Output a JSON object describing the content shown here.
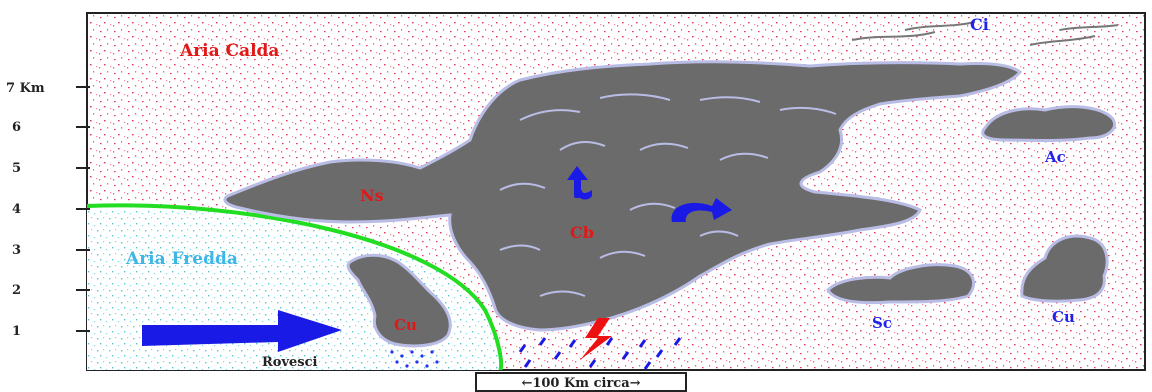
{
  "diagram": {
    "air_masses": {
      "warm": "Aria Calda",
      "cold": "Aria Fredda"
    },
    "clouds": {
      "cirrus": "Ci",
      "altocumulus": "Ac",
      "nimbostratus": "Ns",
      "cumulonimbus": "Cb",
      "cumulus_left": "Cu",
      "stratocumulus": "Sc",
      "cumulus_right": "Cu"
    },
    "showers": "Rovesci",
    "scale": "←100 Km circa→",
    "altitude_axis": {
      "ticks": [
        "7 Km",
        "6",
        "5",
        "4",
        "3",
        "2",
        "1"
      ]
    },
    "colors": {
      "cloud": "#6b6b6b",
      "cloud_edge": "#b9bde6",
      "warm_air_speckle": "#e0395f",
      "cold_air_speckle": "#4ec9d6",
      "front_line": "#22dd22",
      "arrow": "#1a1ae6",
      "label_red": "#e01818",
      "label_blue": "#2222ee"
    }
  }
}
